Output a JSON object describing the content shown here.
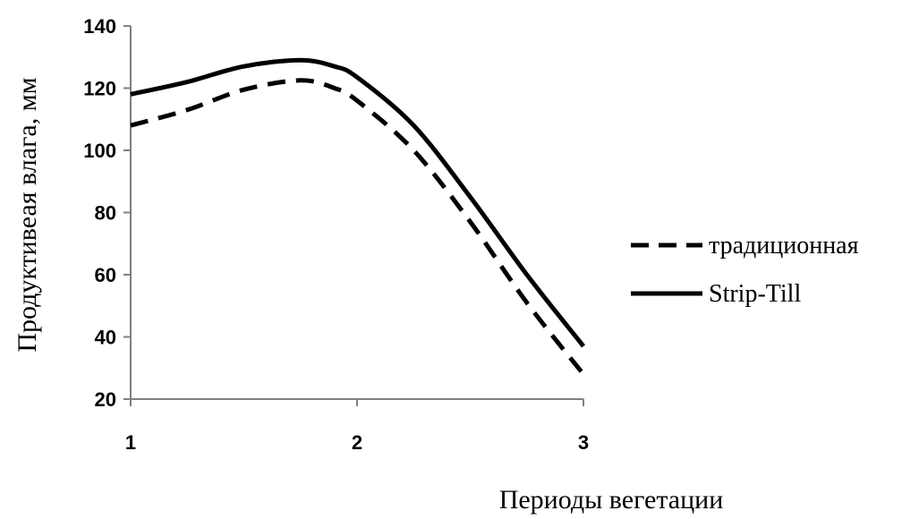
{
  "chart_data": {
    "type": "line",
    "xlabel": "Периоды вегетации",
    "ylabel": "Продуктивеая влага, мм",
    "xlim": [
      1,
      3
    ],
    "ylim": [
      20,
      140
    ],
    "x_ticks": [
      "1",
      "2",
      "3"
    ],
    "y_ticks": [
      "20",
      "40",
      "60",
      "80",
      "100",
      "120",
      "140"
    ],
    "grid": false,
    "legend_position": "right",
    "series": [
      {
        "name": "традиционная",
        "style": "dashed",
        "color": "#000000",
        "points": [
          [
            1.0,
            108
          ],
          [
            1.25,
            113
          ],
          [
            1.5,
            119.5
          ],
          [
            1.75,
            122.5
          ],
          [
            1.9,
            120
          ],
          [
            2.0,
            116
          ],
          [
            2.25,
            100
          ],
          [
            2.5,
            77
          ],
          [
            2.75,
            51
          ],
          [
            3.0,
            28
          ]
        ]
      },
      {
        "name": "Strip-Till",
        "style": "solid",
        "color": "#000000",
        "points": [
          [
            1.0,
            118
          ],
          [
            1.25,
            122
          ],
          [
            1.5,
            127
          ],
          [
            1.75,
            129
          ],
          [
            1.9,
            127
          ],
          [
            2.0,
            123.5
          ],
          [
            2.25,
            108
          ],
          [
            2.5,
            85
          ],
          [
            2.75,
            60
          ],
          [
            3.0,
            37
          ]
        ]
      }
    ]
  }
}
